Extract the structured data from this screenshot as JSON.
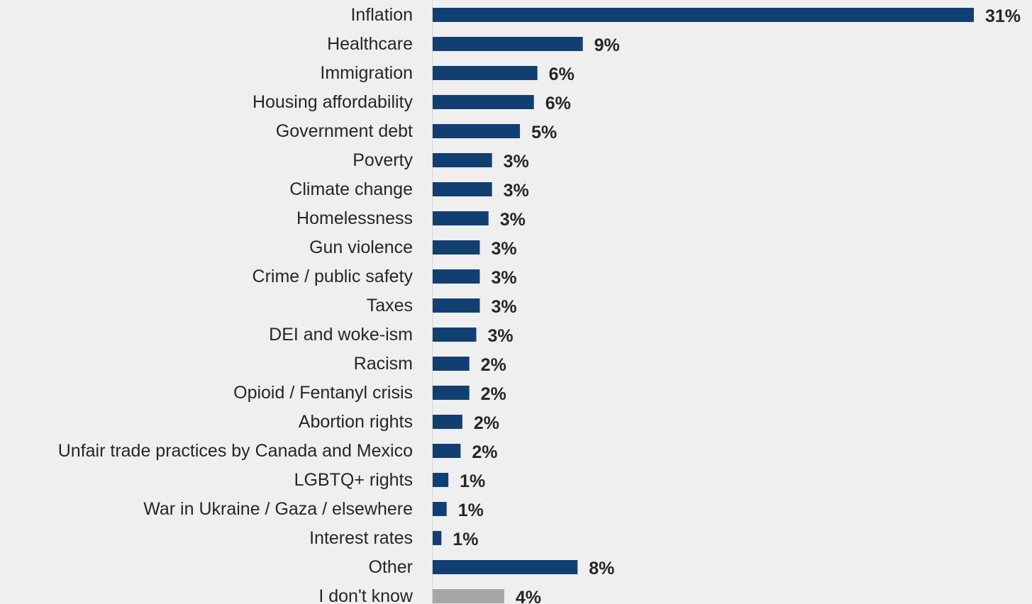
{
  "chart_data": {
    "type": "bar",
    "orientation": "horizontal",
    "categories": [
      "Inflation",
      "Healthcare",
      "Immigration",
      "Housing affordability",
      "Government debt",
      "Poverty",
      "Climate change",
      "Homelessness",
      "Gun violence",
      "Crime / public safety",
      "Taxes",
      "DEI and woke-ism",
      "Racism",
      "Opioid / Fentanyl crisis",
      "Abortion rights",
      "Unfair trade practices by Canada and Mexico",
      "LGBTQ+ rights",
      "War in Ukraine / Gaza / elsewhere",
      "Interest rates",
      "Other",
      "I don't know"
    ],
    "values": [
      31,
      8.6,
      6,
      5.8,
      5,
      3.4,
      3.4,
      3.2,
      2.7,
      2.7,
      2.7,
      2.5,
      2.1,
      2.1,
      1.7,
      1.6,
      0.9,
      0.8,
      0.5,
      8.3,
      4.1
    ],
    "value_labels": [
      "31%",
      "9%",
      "6%",
      "6%",
      "5%",
      "3%",
      "3%",
      "3%",
      "3%",
      "3%",
      "3%",
      "3%",
      "2%",
      "2%",
      "2%",
      "2%",
      "1%",
      "1%",
      "1%",
      "8%",
      "4%"
    ],
    "bar_colors": [
      "#123f72",
      "#123f72",
      "#123f72",
      "#123f72",
      "#123f72",
      "#123f72",
      "#123f72",
      "#123f72",
      "#123f72",
      "#123f72",
      "#123f72",
      "#123f72",
      "#123f72",
      "#123f72",
      "#123f72",
      "#123f72",
      "#123f72",
      "#123f72",
      "#123f72",
      "#123f72",
      "#a6a6a6"
    ],
    "xlim": [
      0,
      31
    ],
    "grid": false,
    "legend": "none",
    "title": "",
    "xlabel": "",
    "ylabel": ""
  },
  "colors": {
    "bar_primary": "#123f72",
    "bar_secondary": "#a6a6a6",
    "text": "#262626",
    "background": "#efefef"
  }
}
